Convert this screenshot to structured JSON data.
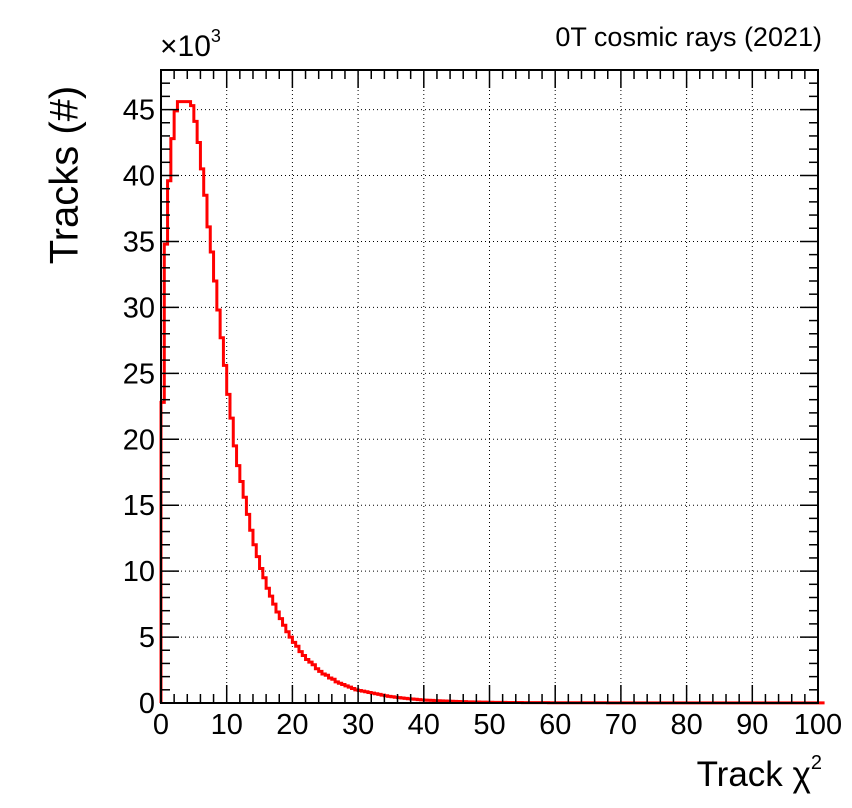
{
  "chart_data": {
    "type": "histogram",
    "title": "0T cosmic rays (2021)",
    "xlabel_text": "Track χ",
    "xlabel_sup": "2",
    "ylabel": "Tracks (#)",
    "y_multiplier_text": "×10",
    "y_multiplier_exp": "3",
    "xlim": [
      0,
      100
    ],
    "ylim": [
      0,
      48
    ],
    "x_ticks": [
      0,
      10,
      20,
      30,
      40,
      50,
      60,
      70,
      80,
      90,
      100
    ],
    "y_ticks": [
      0,
      5,
      10,
      15,
      20,
      25,
      30,
      35,
      40,
      45
    ],
    "grid": true,
    "line_color": "#ff0000",
    "bin_width": 0.5,
    "series": [
      {
        "values": [
          22.8,
          34.8,
          39.6,
          42.8,
          44.9,
          45.6,
          45.6,
          45.6,
          45.6,
          45.3,
          44.1,
          42.5,
          40.5,
          38.5,
          36.1,
          34.2,
          32.0,
          29.8,
          27.7,
          25.6,
          23.4,
          21.6,
          19.5,
          18.0,
          16.8,
          15.6,
          14.3,
          13.1,
          12.0,
          11.1,
          10.2,
          9.5,
          8.7,
          8.1,
          7.5,
          6.9,
          6.4,
          5.9,
          5.4,
          5.0,
          4.6,
          4.3,
          3.9,
          3.6,
          3.3,
          3.1,
          2.9,
          2.6,
          2.4,
          2.2,
          2.1,
          1.9,
          1.8,
          1.6,
          1.5,
          1.4,
          1.3,
          1.2,
          1.1,
          1.0,
          0.95,
          0.9,
          0.85,
          0.8,
          0.75,
          0.7,
          0.65,
          0.6,
          0.55,
          0.5,
          0.47,
          0.44,
          0.41,
          0.38,
          0.35,
          0.32,
          0.3,
          0.28,
          0.26,
          0.24,
          0.22,
          0.21,
          0.2,
          0.18,
          0.17,
          0.16,
          0.15,
          0.14,
          0.13,
          0.12,
          0.11,
          0.1,
          0.1,
          0.09,
          0.09,
          0.08,
          0.08,
          0.07,
          0.07,
          0.06,
          0.06,
          0.05,
          0.05,
          0.05,
          0.05,
          0.04,
          0.04,
          0.04,
          0.04,
          0.04,
          0.03,
          0.03,
          0.03,
          0.03,
          0.03,
          0.03,
          0.03,
          0.03,
          0.02,
          0.02,
          0.02,
          0.02,
          0.02,
          0.02,
          0.02,
          0.02,
          0.02,
          0.02,
          0.02,
          0.02,
          0.02,
          0.02,
          0.02,
          0.02,
          0.02,
          0.02,
          0.01,
          0.01,
          0.01,
          0.01,
          0.01,
          0.01,
          0.01,
          0.01,
          0.01,
          0.01,
          0.01,
          0.01,
          0.01,
          0.01,
          0.01,
          0.01,
          0.01,
          0.01,
          0.01,
          0.01,
          0.01,
          0.01,
          0.01,
          0.01,
          0.01,
          0.01,
          0.01,
          0.01,
          0.01,
          0.01,
          0.01,
          0.01,
          0.01,
          0.01,
          0.01,
          0.01,
          0.01,
          0.01,
          0.01,
          0.01,
          0.01,
          0.01,
          0.01,
          0.01,
          0.01,
          0.01,
          0.01,
          0.01,
          0.01,
          0.01,
          0.01,
          0.01,
          0.01,
          0.01,
          0.01,
          0.01,
          0.01,
          0.01,
          0.01,
          0.01,
          0.01,
          0.01,
          0.01,
          0.01,
          0.01,
          0.01
        ]
      }
    ]
  }
}
